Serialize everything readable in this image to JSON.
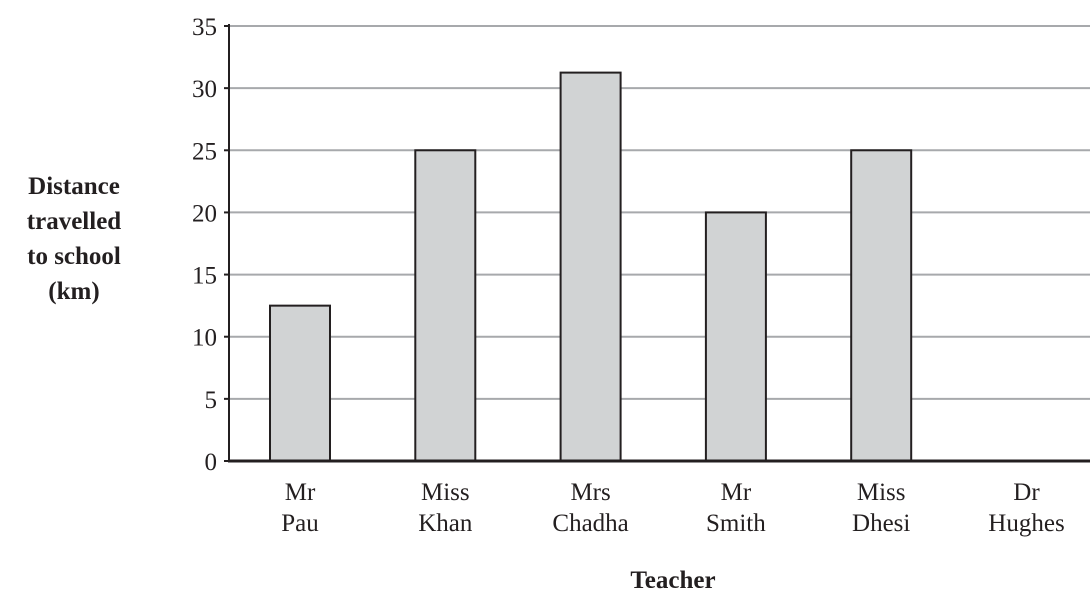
{
  "chart_data": {
    "type": "bar",
    "title": "",
    "xlabel": "Teacher",
    "ylabel_lines": [
      "Distance",
      "travelled",
      "to school",
      "(km)"
    ],
    "categories": [
      [
        "Mr",
        "Pau"
      ],
      [
        "Miss",
        "Khan"
      ],
      [
        "Mrs",
        "Chadha"
      ],
      [
        "Mr",
        "Smith"
      ],
      [
        "Miss",
        "Dhesi"
      ],
      [
        "Dr",
        "Hughes"
      ]
    ],
    "values": [
      12.5,
      25,
      31.25,
      20,
      25,
      null
    ],
    "ylim": [
      0,
      35
    ],
    "yticks": [
      "0",
      "5",
      "10",
      "15",
      "20",
      "25",
      "30",
      "35"
    ],
    "grid": true,
    "bar_color": "#d1d3d4",
    "grid_color": "#a7a9ac",
    "axis_color": "#231f20"
  }
}
